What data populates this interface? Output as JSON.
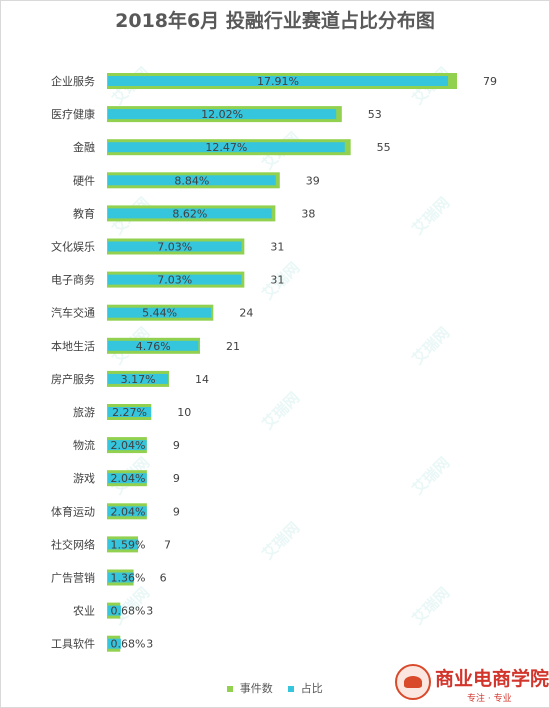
{
  "title": "2018年6月 投融行业赛道占比分布图",
  "watermark": "艾瑞网",
  "colors": {
    "event_bar": "#92d050",
    "ratio_bar": "#35c5dc",
    "text": "#404040"
  },
  "chart_data": {
    "type": "bar",
    "orientation": "horizontal",
    "title": "2018年6月 投融行业赛道占比分布图",
    "categories": [
      "企业服务",
      "医疗健康",
      "金融",
      "硬件",
      "教育",
      "文化娱乐",
      "电子商务",
      "汽车交通",
      "本地生活",
      "房产服务",
      "旅游",
      "物流",
      "游戏",
      "体育运动",
      "社交网络",
      "广告营销",
      "农业",
      "工具软件"
    ],
    "series": [
      {
        "name": "事件数",
        "values": [
          79,
          53,
          55,
          39,
          38,
          31,
          31,
          24,
          21,
          14,
          10,
          9,
          9,
          9,
          7,
          6,
          3,
          3
        ]
      },
      {
        "name": "占比",
        "values": [
          17.91,
          12.02,
          12.47,
          8.84,
          8.62,
          7.03,
          7.03,
          5.44,
          4.76,
          3.17,
          2.27,
          2.04,
          2.04,
          2.04,
          1.59,
          1.36,
          0.68,
          0.68
        ]
      }
    ],
    "count_labels": [
      "79",
      "53",
      "55",
      "39",
      "38",
      "31",
      "31",
      "24",
      "21",
      "14",
      "10",
      "9",
      "9",
      "9",
      "7",
      "6",
      "3",
      "3"
    ],
    "pct_labels": [
      "17.91%",
      "12.02%",
      "12.47%",
      "8.84%",
      "8.62%",
      "7.03%",
      "7.03%",
      "5.44%",
      "4.76%",
      "3.17%",
      "2.27%",
      "2.04%",
      "2.04%",
      "2.04%",
      "1.59%",
      "1.36%",
      "0.68%",
      "0.68%"
    ],
    "legend_position": "bottom",
    "grid": false
  },
  "logo": {
    "name": "商业电商学院",
    "slogan": "专注 · 专业"
  }
}
